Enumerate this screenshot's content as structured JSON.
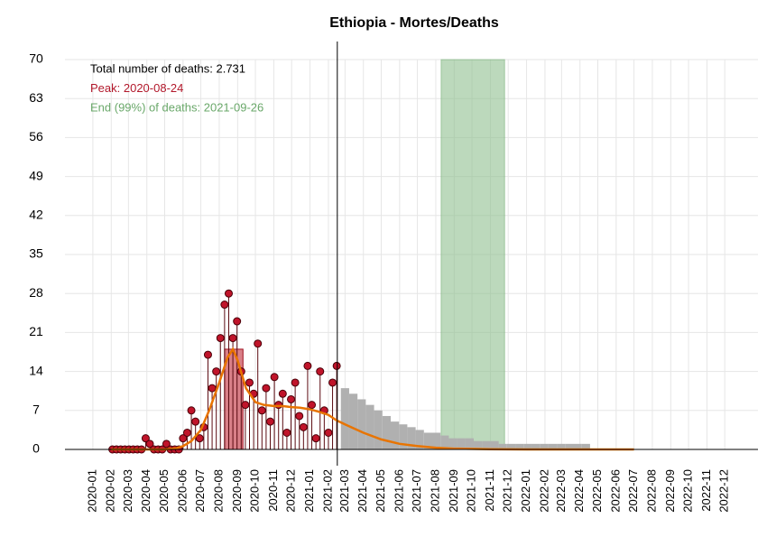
{
  "chart_data": {
    "type": "line",
    "title": "Ethiopia - Mortes/Deaths",
    "annotations": [
      {
        "text": "Total number of deaths: 2.731",
        "color": "#000000"
      },
      {
        "text": "Peak: 2020-08-24",
        "color": "#b2182b"
      },
      {
        "text": "End (99%) of deaths: 2021-09-26",
        "color": "#6aa86a"
      }
    ],
    "xlim": [
      "2019-11-15",
      "2023-01-26"
    ],
    "ylim": [
      0,
      70
    ],
    "yticks": [
      0,
      7,
      14,
      21,
      28,
      35,
      42,
      49,
      56,
      63,
      70
    ],
    "xticks": [
      {
        "value": "2020-01-01",
        "label": "2020-01"
      },
      {
        "value": "2020-02-01",
        "label": "2020-02"
      },
      {
        "value": "2020-03-01",
        "label": "2020-03"
      },
      {
        "value": "2020-04-01",
        "label": "2020-04"
      },
      {
        "value": "2020-05-01",
        "label": "2020-05"
      },
      {
        "value": "2020-06-01",
        "label": "2020-06"
      },
      {
        "value": "2020-07-01",
        "label": "2020-07"
      },
      {
        "value": "2020-08-01",
        "label": "2020-08"
      },
      {
        "value": "2020-09-01",
        "label": "2020-09"
      },
      {
        "value": "2020-10-01",
        "label": "2020-10"
      },
      {
        "value": "2020-11-01",
        "label": "2020-11"
      },
      {
        "value": "2020-12-01",
        "label": "2020-12"
      },
      {
        "value": "2021-01-01",
        "label": "2021-01"
      },
      {
        "value": "2021-02-01",
        "label": "2021-02"
      },
      {
        "value": "2021-03-01",
        "label": "2021-03"
      },
      {
        "value": "2021-04-01",
        "label": "2021-04"
      },
      {
        "value": "2021-05-01",
        "label": "2021-05"
      },
      {
        "value": "2021-06-01",
        "label": "2021-06"
      },
      {
        "value": "2021-07-01",
        "label": "2021-07"
      },
      {
        "value": "2021-08-01",
        "label": "2021-08"
      },
      {
        "value": "2021-09-01",
        "label": "2021-09"
      },
      {
        "value": "2021-10-01",
        "label": "2021-10"
      },
      {
        "value": "2021-11-01",
        "label": "2021-11"
      },
      {
        "value": "2021-12-01",
        "label": "2021-12"
      },
      {
        "value": "2022-01-01",
        "label": "2022-01"
      },
      {
        "value": "2022-02-01",
        "label": "2022-02"
      },
      {
        "value": "2022-03-01",
        "label": "2022-03"
      },
      {
        "value": "2022-04-01",
        "label": "2022-04"
      },
      {
        "value": "2022-05-01",
        "label": "2022-05"
      },
      {
        "value": "2022-06-01",
        "label": "2022-06"
      },
      {
        "value": "2022-07-01",
        "label": "2022-07"
      },
      {
        "value": "2022-08-01",
        "label": "2022-08"
      },
      {
        "value": "2022-09-01",
        "label": "2022-09"
      },
      {
        "value": "2022-10-01",
        "label": "2022-10"
      },
      {
        "value": "2022-11-01",
        "label": "2022-11"
      },
      {
        "value": "2022-12-01",
        "label": "2022-12"
      }
    ],
    "grid": true,
    "peak_band": {
      "x": [
        "2020-08-10",
        "2020-09-10"
      ],
      "y": 18,
      "color": "#d0606a"
    },
    "end_band": {
      "x": [
        "2021-08-10",
        "2021-11-25"
      ],
      "color": "#8fbf8f"
    },
    "vline": "2021-02-16",
    "series": [
      {
        "type": "bar",
        "color": "#b0b0b0",
        "x": [
          "2021-02-22",
          "2021-03-08",
          "2021-03-22",
          "2021-04-05",
          "2021-04-19",
          "2021-05-03",
          "2021-05-17",
          "2021-05-31",
          "2021-06-14",
          "2021-06-28",
          "2021-07-12",
          "2021-07-26",
          "2021-08-09",
          "2021-08-23",
          "2021-09-06",
          "2021-09-20",
          "2021-10-04",
          "2021-10-18",
          "2021-11-01",
          "2021-11-15",
          "2021-11-29",
          "2021-12-13",
          "2021-12-27",
          "2022-01-10",
          "2022-01-24",
          "2022-02-07",
          "2022-02-21",
          "2022-03-07",
          "2022-03-21",
          "2022-04-04"
        ],
        "values": [
          11,
          10,
          9,
          8,
          7,
          6,
          5,
          4.5,
          4,
          3.5,
          3,
          3,
          2.5,
          2,
          2,
          2,
          1.5,
          1.5,
          1.5,
          1,
          1,
          1,
          1,
          1,
          1,
          1,
          1,
          1,
          1,
          1
        ]
      },
      {
        "type": "scatter",
        "color": "#c0142a",
        "x": [
          "2020-02-03",
          "2020-02-10",
          "2020-02-17",
          "2020-02-24",
          "2020-03-02",
          "2020-03-09",
          "2020-03-16",
          "2020-03-23",
          "2020-03-30",
          "2020-04-06",
          "2020-04-13",
          "2020-04-20",
          "2020-04-27",
          "2020-05-04",
          "2020-05-11",
          "2020-05-18",
          "2020-05-25",
          "2020-06-01",
          "2020-06-08",
          "2020-06-15",
          "2020-06-22",
          "2020-06-29",
          "2020-07-06",
          "2020-07-13",
          "2020-07-20",
          "2020-07-27",
          "2020-08-03",
          "2020-08-10",
          "2020-08-17",
          "2020-08-24",
          "2020-08-31",
          "2020-09-07",
          "2020-09-14",
          "2020-09-21",
          "2020-09-28",
          "2020-10-05",
          "2020-10-12",
          "2020-10-19",
          "2020-10-26",
          "2020-11-02",
          "2020-11-09",
          "2020-11-16",
          "2020-11-23",
          "2020-11-30",
          "2020-12-07",
          "2020-12-14",
          "2020-12-21",
          "2020-12-28",
          "2021-01-04",
          "2021-01-11",
          "2021-01-18",
          "2021-01-25",
          "2021-02-01",
          "2021-02-08",
          "2021-02-15"
        ],
        "values": [
          0,
          0,
          0,
          0,
          0,
          0,
          0,
          0,
          2,
          1,
          0,
          0,
          0,
          1,
          0,
          0,
          0,
          2,
          3,
          7,
          5,
          2,
          4,
          17,
          11,
          14,
          20,
          26,
          28,
          20,
          23,
          14,
          8,
          12,
          10,
          19,
          7,
          11,
          5,
          13,
          8,
          10,
          3,
          9,
          12,
          6,
          4,
          15,
          8,
          2,
          14,
          7,
          3,
          12,
          15
        ]
      },
      {
        "type": "line",
        "color": "#e87400",
        "x": [
          "2020-02-01",
          "2020-03-01",
          "2020-04-01",
          "2020-05-01",
          "2020-05-20",
          "2020-06-01",
          "2020-06-15",
          "2020-07-01",
          "2020-07-15",
          "2020-08-01",
          "2020-08-15",
          "2020-08-24",
          "2020-09-01",
          "2020-09-15",
          "2020-10-01",
          "2020-10-15",
          "2020-11-01",
          "2020-11-15",
          "2020-12-01",
          "2020-12-15",
          "2021-01-01",
          "2021-01-15",
          "2021-02-01",
          "2021-02-15",
          "2021-03-01",
          "2021-04-01",
          "2021-05-01",
          "2021-06-01",
          "2021-07-01",
          "2021-08-01",
          "2021-09-01",
          "2021-10-01",
          "2021-11-01",
          "2022-01-01",
          "2022-07-01"
        ],
        "values": [
          0,
          0,
          0,
          0,
          0.2,
          0.6,
          1.5,
          3.5,
          7,
          12,
          16.5,
          18,
          16,
          11,
          8.5,
          8,
          7.8,
          7.8,
          7.6,
          7.5,
          7.2,
          6.8,
          6.2,
          5.2,
          4.5,
          3,
          1.8,
          1,
          0.6,
          0.3,
          0.15,
          0.1,
          0.05,
          0,
          0
        ]
      }
    ]
  }
}
